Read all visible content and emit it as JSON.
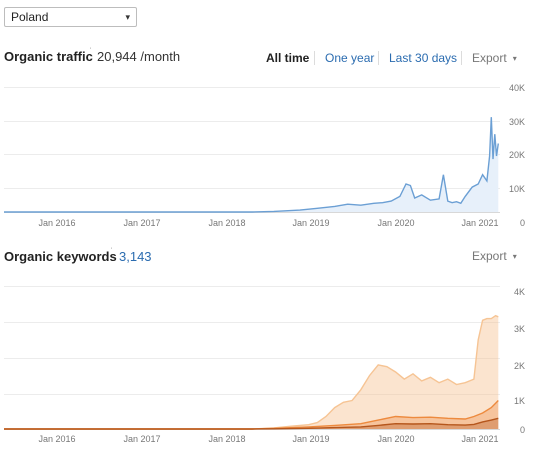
{
  "country_select": {
    "value": "Poland",
    "arrow": "▾"
  },
  "traffic": {
    "title": "Organic traffic",
    "value": "20,944 /month",
    "ranges": [
      "All time",
      "One year",
      "Last 30 days"
    ],
    "active_range": "All time",
    "export": "Export",
    "export_icon": "▾"
  },
  "keywords": {
    "title": "Organic keywords",
    "value": "3,143",
    "export": "Export",
    "export_icon": "▾"
  },
  "colors": {
    "traffic_line": "#6b9fd4",
    "traffic_fill": "#e7f0fa",
    "kw_light": "#f6c494",
    "kw_mid": "#ed8a3e",
    "kw_dark": "#b5561c",
    "grid": "#ececec"
  },
  "chart_data": [
    {
      "type": "area",
      "name": "organic-traffic",
      "x_ticks": [
        "Jan 2016",
        "Jan 2017",
        "Jan 2018",
        "Jan 2019",
        "Jan 2020",
        "Jan 2021"
      ],
      "y_ticks": [
        "40K",
        "30K",
        "20K",
        "10K",
        "0"
      ],
      "ylim": [
        0,
        40000
      ],
      "xlim": [
        2015.5,
        2021.2
      ],
      "grid": true,
      "series": [
        {
          "x": [
            2015.5,
            2018.35,
            2018.6,
            2018.9,
            2019.1,
            2019.3,
            2019.45,
            2019.6,
            2019.75,
            2019.85,
            2019.95,
            2020.05,
            2020.12,
            2020.17,
            2020.22,
            2020.3,
            2020.4,
            2020.5,
            2020.55,
            2020.6,
            2020.65,
            2020.7,
            2020.75,
            2020.8,
            2020.88,
            2020.95,
            2021.0,
            2021.05,
            2021.08,
            2021.1,
            2021.12,
            2021.14,
            2021.16,
            2021.18
          ],
          "y": [
            0,
            0,
            200,
            600,
            1200,
            1800,
            2500,
            2200,
            2800,
            3000,
            3500,
            5000,
            9000,
            8500,
            4500,
            5500,
            3800,
            4200,
            12000,
            3500,
            3000,
            3300,
            2800,
            5000,
            8000,
            9000,
            12000,
            10000,
            18000,
            30500,
            17000,
            25000,
            18000,
            22000
          ]
        }
      ]
    },
    {
      "type": "area",
      "name": "organic-keywords",
      "x_ticks": [
        "Jan 2016",
        "Jan 2017",
        "Jan 2018",
        "Jan 2019",
        "Jan 2020",
        "Jan 2021"
      ],
      "y_ticks": [
        "4K",
        "3K",
        "2K",
        "1K",
        "0"
      ],
      "ylim": [
        0,
        4000
      ],
      "xlim": [
        2015.5,
        2021.2
      ],
      "grid": true,
      "series": [
        {
          "x": [
            2015.5,
            2018.35,
            2018.6,
            2018.8,
            2019.0,
            2019.1,
            2019.2,
            2019.3,
            2019.4,
            2019.5,
            2019.6,
            2019.7,
            2019.8,
            2019.9,
            2020.0,
            2020.1,
            2020.2,
            2020.3,
            2020.4,
            2020.5,
            2020.6,
            2020.7,
            2020.8,
            2020.9,
            2020.95,
            2021.0,
            2021.05,
            2021.1,
            2021.15,
            2021.18
          ],
          "y": [
            0,
            0,
            30,
            80,
            120,
            180,
            350,
            600,
            750,
            800,
            1100,
            1500,
            1800,
            1750,
            1600,
            1400,
            1550,
            1350,
            1450,
            1300,
            1400,
            1250,
            1300,
            1400,
            2500,
            3050,
            3100,
            3100,
            3180,
            3150
          ]
        },
        {
          "x": [
            2015.5,
            2018.35,
            2018.6,
            2019.0,
            2019.3,
            2019.6,
            2019.8,
            2020.0,
            2020.2,
            2020.4,
            2020.6,
            2020.8,
            2020.9,
            2021.0,
            2021.1,
            2021.18
          ],
          "y": [
            0,
            0,
            20,
            60,
            100,
            150,
            250,
            350,
            320,
            330,
            300,
            280,
            350,
            450,
            600,
            800
          ]
        },
        {
          "x": [
            2015.5,
            2018.35,
            2018.6,
            2019.0,
            2019.3,
            2019.6,
            2019.8,
            2020.0,
            2020.2,
            2020.4,
            2020.6,
            2020.8,
            2020.9,
            2021.0,
            2021.1,
            2021.18
          ],
          "y": [
            0,
            0,
            5,
            20,
            40,
            60,
            100,
            150,
            140,
            150,
            120,
            110,
            130,
            200,
            250,
            300
          ]
        }
      ]
    }
  ]
}
